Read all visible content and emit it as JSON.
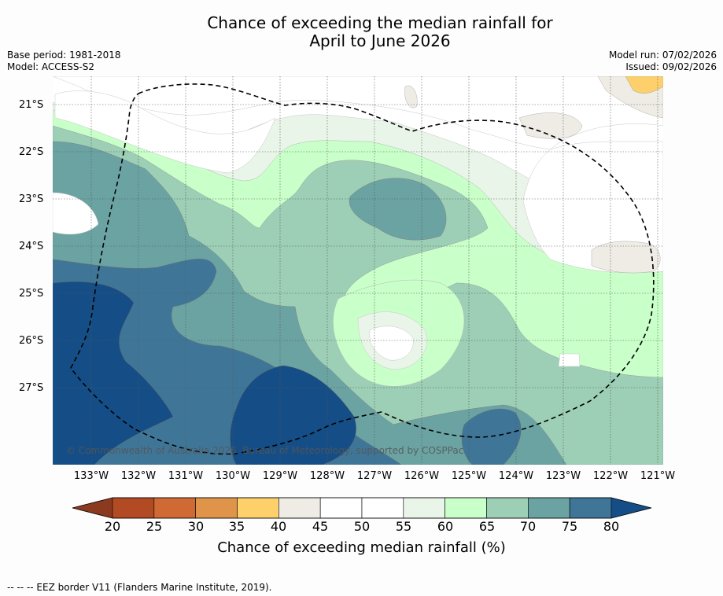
{
  "title_line1": "Chance of exceeding the median rainfall for",
  "title_line2": "April to June 2026",
  "base_period": "Base period: 1981-2018",
  "model": "Model: ACCESS-S2",
  "model_run": "Model run: 07/02/2026",
  "issued": "Issued: 09/02/2026",
  "copyright": "© Commonwealth of Australia 2026, Bureau of Meteorology, supported by COSPPac",
  "lat_labels": [
    "21°S",
    "22°S",
    "23°S",
    "24°S",
    "25°S",
    "26°S",
    "27°S"
  ],
  "lon_labels": [
    "133°W",
    "132°W",
    "131°W",
    "130°W",
    "129°W",
    "128°W",
    "127°W",
    "126°W",
    "125°W",
    "124°W",
    "123°W",
    "122°W",
    "121°W"
  ],
  "colorbar": {
    "label": "Chance of exceeding median rainfall (%)",
    "ticks": [
      "20",
      "25",
      "30",
      "35",
      "40",
      "45",
      "50",
      "55",
      "60",
      "65",
      "70",
      "75",
      "80"
    ],
    "colors": [
      "#8b3a1f",
      "#b24a24",
      "#d06a34",
      "#e0944a",
      "#fdd06b",
      "#efece6",
      "#ffffff",
      "#ffffff",
      "#e9f5e8",
      "#c9ffc9",
      "#9ccfb6",
      "#6ba3a3",
      "#3f7698",
      "#154e86"
    ]
  },
  "footer": "--  --  -- EEZ border V11 (Flanders Marine Institute, 2019)."
}
